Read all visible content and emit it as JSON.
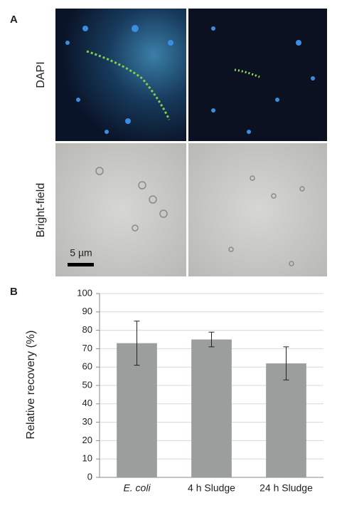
{
  "panel_a": {
    "label": "A",
    "rows": [
      "DAPI",
      "Bright-field"
    ],
    "scale_bar": "5 µm"
  },
  "chart_data": {
    "type": "bar",
    "panel_label": "B",
    "ylabel": "Relative recovery (%)",
    "categories": [
      "E. coli",
      "4 h Sludge",
      "24 h Sludge"
    ],
    "values": [
      73,
      75,
      62
    ],
    "errors": [
      12,
      4,
      9
    ],
    "color": "#9a9e9d",
    "ylim": [
      0,
      100
    ],
    "yticks": [
      0,
      10,
      20,
      30,
      40,
      50,
      60,
      70,
      80,
      90,
      100
    ],
    "grid": true
  }
}
